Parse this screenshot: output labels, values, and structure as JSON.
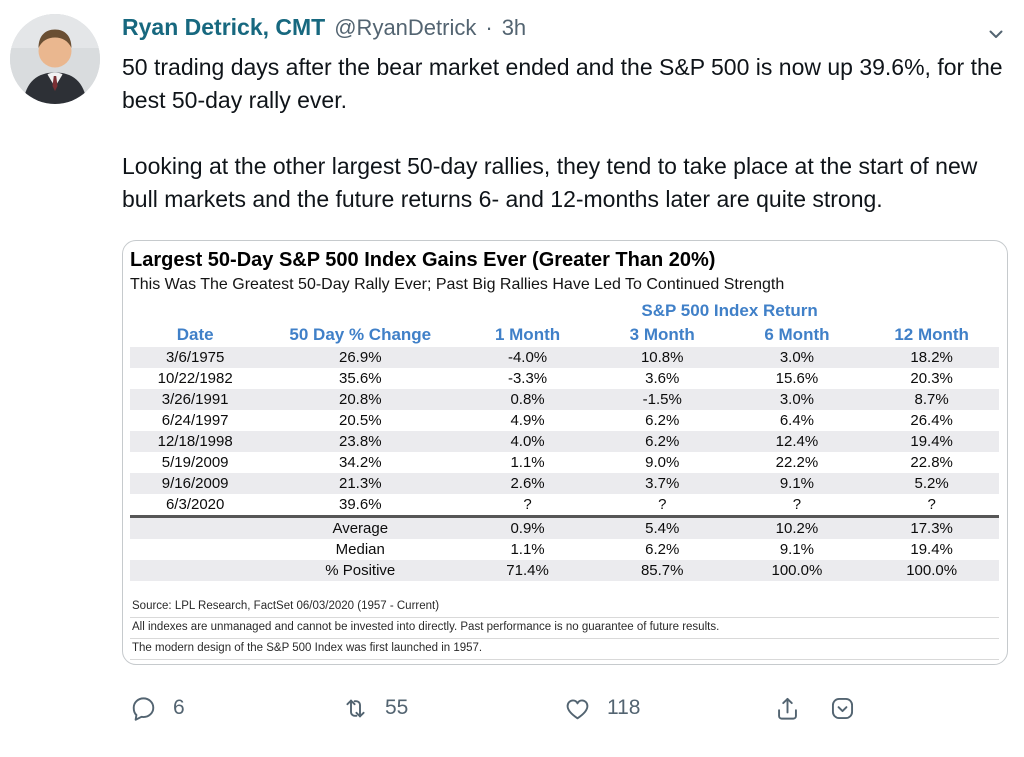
{
  "colors": {
    "author": "#17687f",
    "muted": "#536471",
    "header_blue": "#4080c8",
    "pos_green": "#3fa35a",
    "neg_red": "#e0392f",
    "stripe": "#ebebee",
    "text": "#0f1419"
  },
  "icons": {
    "expand": "chevron-down",
    "reply": "reply-bubble",
    "retweet": "retweet-arrows",
    "like": "heart-outline",
    "share": "arrow-up-from-tray",
    "save": "rounded-square-chevron-down"
  },
  "tweet": {
    "author": "Ryan Detrick, CMT",
    "handle": "@RyanDetrick",
    "dot": "·",
    "time": "3h",
    "paragraphs": [
      "50 trading days after the bear market ended and the S&P 500 is now up 39.6%, for the best 50-day rally ever.",
      "Looking at the other largest 50-day rallies, they tend to take place at the start of new bull markets and the future returns 6- and 12-months later are quite strong."
    ]
  },
  "chart_data": {
    "type": "table",
    "title": "Largest 50-Day S&P 500 Index Gains Ever (Greater Than 20%)",
    "subtitle": "This Was The Greatest 50-Day Rally Ever; Past Big Rallies Have Led To Continued Strength",
    "group_header": "S&P 500 Index Return",
    "columns": [
      "Date",
      "50 Day % Change",
      "1 Month",
      "3 Month",
      "6 Month",
      "12 Month"
    ],
    "rows": [
      [
        "3/6/1975",
        "26.9%",
        "-4.0%",
        "10.8%",
        "3.0%",
        "18.2%"
      ],
      [
        "10/22/1982",
        "35.6%",
        "-3.3%",
        "3.6%",
        "15.6%",
        "20.3%"
      ],
      [
        "3/26/1991",
        "20.8%",
        "0.8%",
        "-1.5%",
        "3.0%",
        "8.7%"
      ],
      [
        "6/24/1997",
        "20.5%",
        "4.9%",
        "6.2%",
        "6.4%",
        "26.4%"
      ],
      [
        "12/18/1998",
        "23.8%",
        "4.0%",
        "6.2%",
        "12.4%",
        "19.4%"
      ],
      [
        "5/19/2009",
        "34.2%",
        "1.1%",
        "9.0%",
        "22.2%",
        "22.8%"
      ],
      [
        "9/16/2009",
        "21.3%",
        "2.6%",
        "3.7%",
        "9.1%",
        "5.2%"
      ],
      [
        "6/3/2020",
        "39.6%",
        "?",
        "?",
        "?",
        "?"
      ]
    ],
    "summary_rows": [
      {
        "label": "Average",
        "values": [
          "0.9%",
          "5.4%",
          "10.2%",
          "17.3%"
        ],
        "value_color": "pos"
      },
      {
        "label": "Median",
        "values": [
          "1.1%",
          "6.2%",
          "9.1%",
          "19.4%"
        ],
        "value_color": "pos"
      },
      {
        "label": "% Positive",
        "values": [
          "71.4%",
          "85.7%",
          "100.0%",
          "100.0%"
        ],
        "value_color": "plain"
      }
    ],
    "footnotes": [
      "Source: LPL Research, FactSet 06/03/2020 (1957 - Current)",
      "All indexes are unmanaged and cannot be invested into directly. Past performance is no guarantee of future results.",
      "The modern design of the S&P 500 Index was first launched in 1957."
    ]
  },
  "actions": {
    "reply_count": "6",
    "retweet_count": "55",
    "like_count": "118"
  }
}
